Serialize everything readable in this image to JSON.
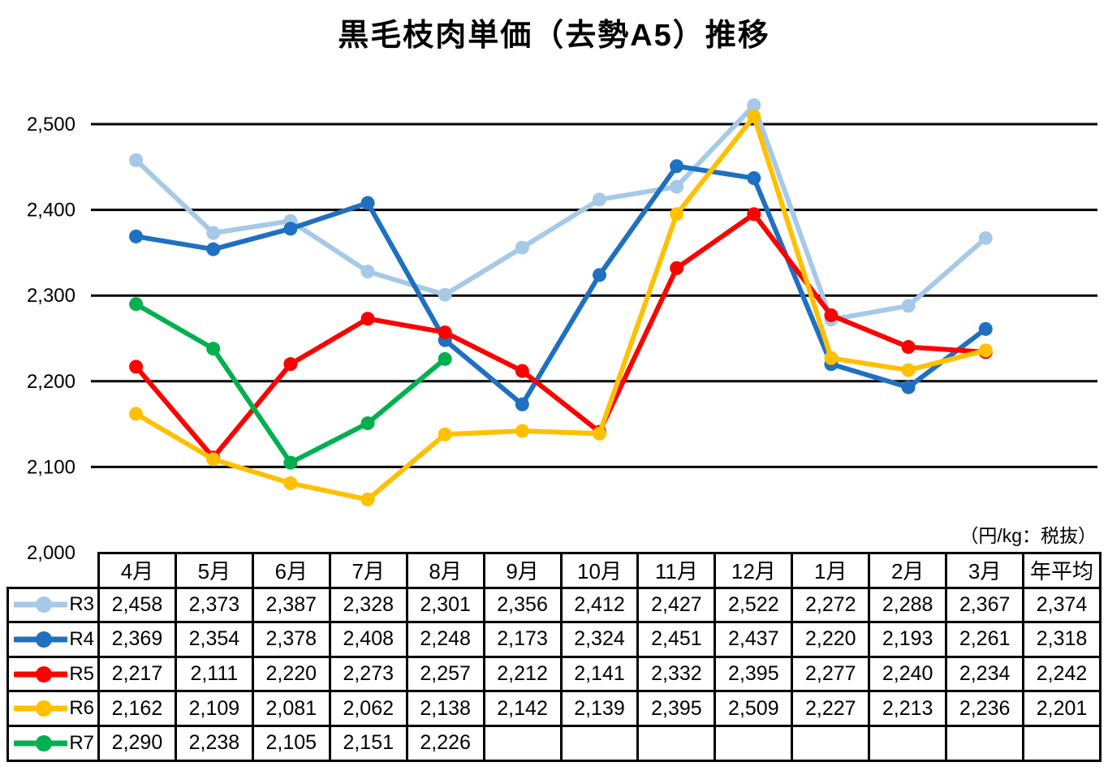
{
  "title": "黒毛枝肉単価（去勢A5）推移",
  "unit_note": "（円/kg：税抜）",
  "colors": {
    "r3": "#A6C9E8",
    "r4": "#1F70C1",
    "r5": "#FF0000",
    "r6": "#FFC000",
    "r7": "#00B050",
    "gridline": "#000000",
    "text": "#000000"
  },
  "chart_data": {
    "type": "line",
    "title": "黒毛枝肉単価（去勢A5）推移",
    "xlabel": "",
    "ylabel": "",
    "unit": "円/kg（税抜）",
    "ylim": [
      2000,
      2550
    ],
    "grid": "horizontal",
    "legend_position": "table-left-column",
    "categories": [
      "4月",
      "5月",
      "6月",
      "7月",
      "8月",
      "9月",
      "10月",
      "11月",
      "12月",
      "1月",
      "2月",
      "3月"
    ],
    "yticks": [
      {
        "value": 2000,
        "label": "2,000"
      },
      {
        "value": 2100,
        "label": "2,100"
      },
      {
        "value": 2200,
        "label": "2,200"
      },
      {
        "value": 2300,
        "label": "2,300"
      },
      {
        "value": 2400,
        "label": "2,400"
      },
      {
        "value": 2500,
        "label": "2,500"
      }
    ],
    "series": [
      {
        "name": "R3",
        "color": "#A6C9E8",
        "values": [
          2458,
          2373,
          2387,
          2328,
          2301,
          2356,
          2412,
          2427,
          2522,
          2272,
          2288,
          2367
        ],
        "annual_average": 2374
      },
      {
        "name": "R4",
        "color": "#1F70C1",
        "values": [
          2369,
          2354,
          2378,
          2408,
          2248,
          2173,
          2324,
          2451,
          2437,
          2220,
          2193,
          2261
        ],
        "annual_average": 2318
      },
      {
        "name": "R5",
        "color": "#FF0000",
        "values": [
          2217,
          2111,
          2220,
          2273,
          2257,
          2212,
          2141,
          2332,
          2395,
          2277,
          2240,
          2234
        ],
        "annual_average": 2242
      },
      {
        "name": "R6",
        "color": "#FFC000",
        "values": [
          2162,
          2109,
          2081,
          2062,
          2138,
          2142,
          2139,
          2395,
          2509,
          2227,
          2213,
          2236
        ],
        "annual_average": 2201
      },
      {
        "name": "R7",
        "color": "#00B050",
        "values": [
          2290,
          2238,
          2105,
          2151,
          2226,
          null,
          null,
          null,
          null,
          null,
          null,
          null
        ],
        "annual_average": null
      }
    ]
  },
  "table": {
    "columns": [
      "4月",
      "5月",
      "6月",
      "7月",
      "8月",
      "9月",
      "10月",
      "11月",
      "12月",
      "1月",
      "2月",
      "3月",
      "年平均"
    ],
    "rows": [
      {
        "label": "R3",
        "color": "#A6C9E8",
        "cells": [
          "2,458",
          "2,373",
          "2,387",
          "2,328",
          "2,301",
          "2,356",
          "2,412",
          "2,427",
          "2,522",
          "2,272",
          "2,288",
          "2,367",
          "2,374"
        ]
      },
      {
        "label": "R4",
        "color": "#1F70C1",
        "cells": [
          "2,369",
          "2,354",
          "2,378",
          "2,408",
          "2,248",
          "2,173",
          "2,324",
          "2,451",
          "2,437",
          "2,220",
          "2,193",
          "2,261",
          "2,318"
        ]
      },
      {
        "label": "R5",
        "color": "#FF0000",
        "cells": [
          "2,217",
          "2,111",
          "2,220",
          "2,273",
          "2,257",
          "2,212",
          "2,141",
          "2,332",
          "2,395",
          "2,277",
          "2,240",
          "2,234",
          "2,242"
        ]
      },
      {
        "label": "R6",
        "color": "#FFC000",
        "cells": [
          "2,162",
          "2,109",
          "2,081",
          "2,062",
          "2,138",
          "2,142",
          "2,139",
          "2,395",
          "2,509",
          "2,227",
          "2,213",
          "2,236",
          "2,201"
        ]
      },
      {
        "label": "R7",
        "color": "#00B050",
        "cells": [
          "2,290",
          "2,238",
          "2,105",
          "2,151",
          "2,226",
          "",
          "",
          "",
          "",
          "",
          "",
          "",
          ""
        ]
      }
    ]
  }
}
